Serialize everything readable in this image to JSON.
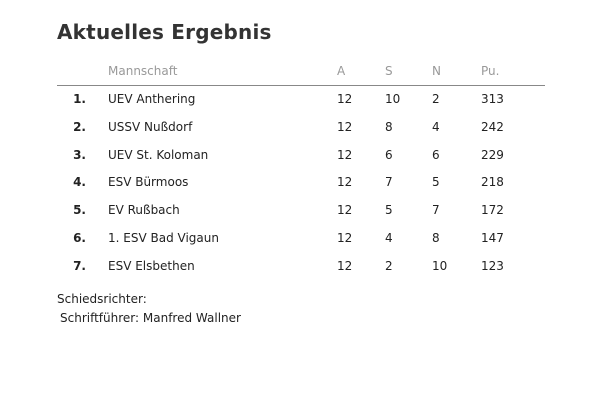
{
  "title": "Aktuelles Ergebnis",
  "table": {
    "header": [
      "Mannschaft",
      "A",
      "S",
      "N",
      "Pu."
    ],
    "rows": [
      [
        "1.",
        "UEV Anthering",
        12,
        10,
        2,
        313
      ],
      [
        "2.",
        "USSV Nußdorf",
        12,
        8,
        4,
        242
      ],
      [
        "3.",
        "UEV St. Koloman",
        12,
        6,
        6,
        229
      ],
      [
        "4.",
        "ESV Bürmoos",
        12,
        7,
        5,
        218
      ],
      [
        "5.",
        "EV Rußbach",
        12,
        5,
        7,
        172
      ],
      [
        "6.",
        "1. ESV Bad Vigaun",
        12,
        4,
        8,
        147
      ],
      [
        "7.",
        "ESV Elsbethen",
        12,
        2,
        10,
        123
      ]
    ]
  },
  "footer": {
    "referee_label": "Schiedsrichter:",
    "scorer_label": "Schriftführer:",
    "scorer_name": "Manfred Wallner"
  }
}
